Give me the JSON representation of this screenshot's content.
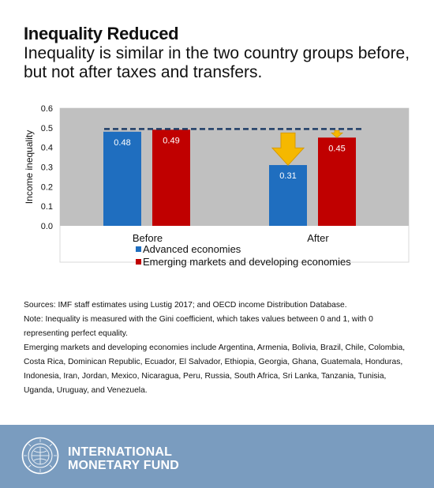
{
  "title": "Inequality Reduced",
  "subtitle": "Inequality is similar in the two country groups before, but not after taxes and transfers.",
  "chart_data": {
    "type": "bar",
    "categories": [
      "Before",
      "After"
    ],
    "series": [
      {
        "name": "Advanced economies",
        "values": [
          0.48,
          0.31
        ],
        "color": "#1f6ebf"
      },
      {
        "name": "Emerging markets and developing economies",
        "values": [
          0.49,
          0.45
        ],
        "color": "#c00000"
      }
    ],
    "data_labels": [
      [
        "0.48",
        "0.31"
      ],
      [
        "0.49",
        "0.45"
      ]
    ],
    "ylabel": "Income inequality",
    "xlabel": "",
    "ylim": [
      0,
      0.6
    ],
    "yticks": [
      "0.0",
      "0.1",
      "0.2",
      "0.3",
      "0.4",
      "0.5",
      "0.6"
    ],
    "reference_line": {
      "value": 0.49,
      "style": "dashed",
      "color": "#1f3d66"
    },
    "grid": false,
    "plot_background": "#c0c0c0",
    "legend_position": "bottom",
    "arrow_color": "#f5b800"
  },
  "notes": {
    "sources": "Sources: IMF staff estimates using Lustig 2017; and OECD income Distribution Database.",
    "note": "Note: Inequality is measured with the Gini coefficient, which takes values between 0 and 1, with 0 representing perfect equality.",
    "countries": "Emerging markets and developing economies include Argentina, Armenia, Bolivia, Brazil, Chile, Colombia, Costa Rica, Dominican Republic, Ecuador, El Salvador, Ethiopia, Georgia, Ghana, Guatemala, Honduras, Indonesia, Iran, Jordan, Mexico, Nicaragua, Peru, Russia, South Africa, Sri Lanka, Tanzania, Tunisia, Uganda, Uruguay, and Venezuela."
  },
  "footer": {
    "org_line1": "INTERNATIONAL",
    "org_line2": "MONETARY FUND",
    "footer_color": "#7a9cbf"
  }
}
